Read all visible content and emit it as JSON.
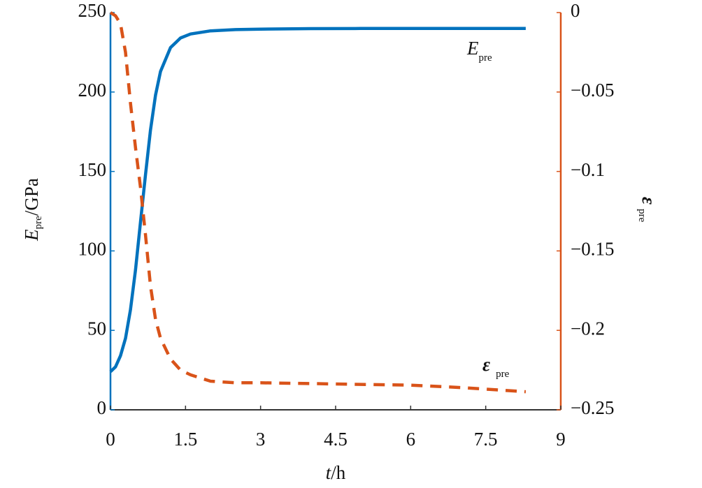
{
  "chart_data": {
    "type": "line",
    "xlabel": {
      "main": "t",
      "unit": "/h"
    },
    "ylabel": {
      "main": "E",
      "sub": "pre",
      "unit": "/GPa"
    },
    "y2label": {
      "main": "ε",
      "sub": "pre"
    },
    "annotations": [
      {
        "main": "E",
        "sub": "pre"
      },
      {
        "main": "ε",
        "sub": "pre"
      }
    ],
    "x": [
      0,
      0.1,
      0.2,
      0.3,
      0.4,
      0.5,
      0.6,
      0.7,
      0.8,
      0.9,
      1.0,
      1.2,
      1.4,
      1.6,
      2.0,
      2.5,
      3,
      4,
      5,
      6,
      7,
      8.3
    ],
    "series": [
      {
        "color": "#0072bd",
        "dash": false,
        "values": [
          24,
          27,
          34,
          45,
          63,
          88,
          118,
          148,
          176,
          198,
          213,
          228,
          234,
          236.5,
          238.5,
          239.3,
          239.6,
          239.9,
          240,
          240,
          240,
          240
        ]
      },
      {
        "color": "#d95319",
        "dash": true,
        "axis": "y2",
        "values": [
          0,
          -0.002,
          -0.007,
          -0.025,
          -0.057,
          -0.085,
          -0.11,
          -0.14,
          -0.172,
          -0.193,
          -0.205,
          -0.218,
          -0.225,
          -0.228,
          -0.232,
          -0.233,
          -0.233,
          -0.2335,
          -0.234,
          -0.2345,
          -0.236,
          -0.2386
        ]
      }
    ],
    "xlim": [
      0,
      9
    ],
    "xticks": [
      0,
      1.5,
      3,
      4.5,
      6,
      7.5,
      9
    ],
    "ylim": [
      0,
      250
    ],
    "yticks": [
      0,
      50,
      100,
      150,
      200,
      250
    ],
    "y2lim": [
      -0.25,
      0
    ],
    "y2ticks": [
      {
        "value": -0.25,
        "label": "−0.25"
      },
      {
        "value": -0.2,
        "label": "−0.2"
      },
      {
        "value": -0.15,
        "label": "−0.15"
      },
      {
        "value": -0.1,
        "label": "−0.1"
      },
      {
        "value": -0.05,
        "label": "−0.05"
      },
      0
    ],
    "grid": false
  }
}
